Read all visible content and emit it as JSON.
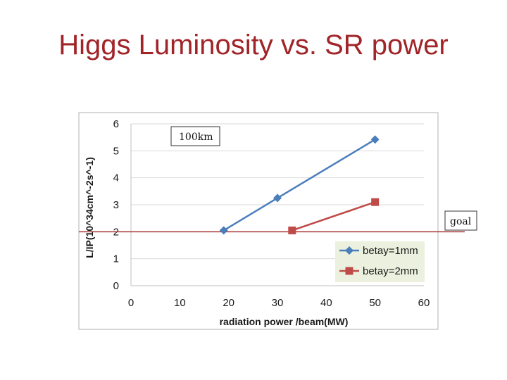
{
  "slide": {
    "title": "Higgs Luminosity vs. SR power"
  },
  "colors": {
    "title": "#a02428",
    "series1": "#4a7ebb",
    "series2": "#be4b48",
    "goal_line": "#a83232",
    "legend_bg": "#ebf1de"
  },
  "chart_data": {
    "type": "line",
    "title": "",
    "xlabel": "radiation power /beam(MW)",
    "ylabel": "L/IP(10^34cm^-2s^-1)",
    "xlim": [
      0,
      60
    ],
    "ylim": [
      0,
      6
    ],
    "x_ticks": [
      0,
      10,
      20,
      30,
      40,
      50,
      60
    ],
    "y_ticks": [
      0,
      1,
      2,
      3,
      4,
      5,
      6
    ],
    "grid": true,
    "legend_position": "bottom-right",
    "series": [
      {
        "name": "betay=1mm",
        "marker": "diamond",
        "x": [
          19,
          30,
          50
        ],
        "y": [
          2.05,
          3.25,
          5.42
        ]
      },
      {
        "name": "betay=2mm",
        "marker": "square",
        "x": [
          33,
          50
        ],
        "y": [
          2.05,
          3.1
        ]
      }
    ],
    "annotations": [
      {
        "text": "100km"
      },
      {
        "text": "goal",
        "y": 2.0
      }
    ]
  }
}
